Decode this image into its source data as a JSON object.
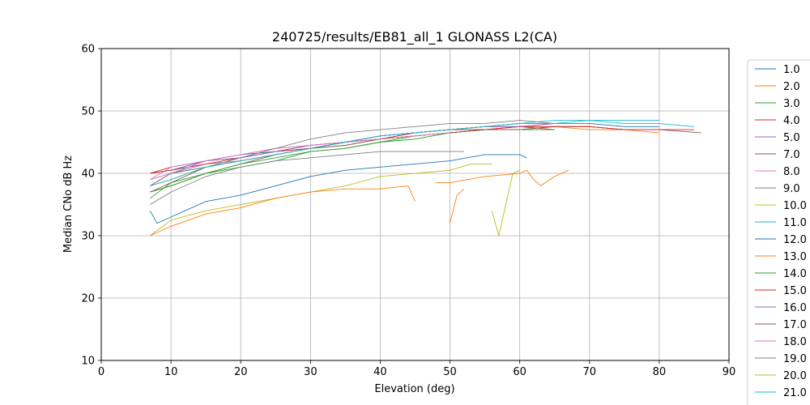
{
  "chart_data": {
    "type": "line",
    "title": "240725/results/EB81_all_1 GLONASS L2(CA)",
    "xlabel": "Elevation (deg)",
    "ylabel": "Median CNo dB Hz",
    "xlim": [
      0,
      90
    ],
    "ylim": [
      10,
      60
    ],
    "xticks": [
      "0",
      "10",
      "20",
      "30",
      "40",
      "50",
      "60",
      "70",
      "80",
      "90"
    ],
    "yticks": [
      "10",
      "20",
      "30",
      "40",
      "50",
      "60"
    ],
    "grid": true,
    "legend": "right, outside plot (truncated)",
    "series": [
      {
        "name": "1.0",
        "color": "#1f77b4",
        "x": [
          7,
          10,
          15,
          20,
          25,
          30,
          35,
          40,
          45,
          50,
          55,
          60,
          65,
          70,
          75,
          80
        ],
        "y": [
          40,
          40.5,
          42,
          43,
          43.5,
          44,
          45,
          46,
          46.5,
          47,
          47.5,
          48,
          48,
          48,
          47.5,
          47.5
        ]
      },
      {
        "name": "2.0",
        "color": "#ff7f0e",
        "x": [
          7,
          10,
          15,
          20,
          25,
          30,
          35,
          40,
          45,
          50,
          55,
          60,
          65,
          70,
          75,
          80
        ],
        "y": [
          38,
          39,
          41,
          42,
          43,
          44,
          45,
          45.5,
          46,
          46.5,
          47,
          47.5,
          47.5,
          47,
          47,
          46.5
        ]
      },
      {
        "name": "3.0",
        "color": "#2ca02c",
        "x": [
          7,
          10,
          15,
          20,
          25,
          30,
          35,
          40,
          45,
          50,
          55,
          60,
          65,
          70,
          75
        ],
        "y": [
          36,
          38.5,
          40,
          41,
          42,
          43.5,
          44,
          45,
          46,
          46.5,
          47,
          47,
          47.5,
          47.5,
          47
        ]
      },
      {
        "name": "4.0",
        "color": "#d62728",
        "x": [
          7,
          10,
          15,
          20,
          25,
          30,
          35,
          40,
          45,
          50,
          55,
          60,
          65
        ],
        "y": [
          40,
          41,
          42,
          42.5,
          43.5,
          44.5,
          45,
          46,
          46.5,
          47,
          47.5,
          47.5,
          47
        ]
      },
      {
        "name": "5.0",
        "color": "#9467bd",
        "x": [
          7,
          10,
          15,
          20,
          25,
          30,
          35,
          40,
          45,
          50,
          55,
          60,
          65,
          70
        ],
        "y": [
          38,
          40,
          41.5,
          42,
          43,
          44,
          45,
          45.5,
          46.5,
          47,
          47,
          47.5,
          48,
          48
        ]
      },
      {
        "name": "7.0",
        "color": "#8c564b",
        "x": [
          7,
          10,
          15,
          20,
          25,
          30,
          35,
          40,
          45,
          50,
          55,
          60,
          65,
          70,
          75,
          80,
          86
        ],
        "y": [
          37,
          38,
          40,
          41.5,
          43,
          44,
          44.5,
          45.5,
          46,
          46.5,
          47,
          47,
          47.5,
          47.5,
          47,
          47,
          46.5
        ]
      },
      {
        "name": "8.0",
        "color": "#e377c2",
        "x": [
          7,
          10,
          15,
          20,
          25,
          30,
          35,
          40,
          45,
          50,
          55,
          60
        ],
        "y": [
          39,
          41,
          42,
          43,
          44,
          44.5,
          45,
          46,
          46.5,
          47,
          47,
          47.5
        ]
      },
      {
        "name": "9.0",
        "color": "#7f7f7f",
        "x": [
          7,
          10,
          15,
          20,
          25,
          30,
          35,
          40,
          45,
          50,
          52
        ],
        "y": [
          35,
          37,
          39.5,
          41,
          42,
          42.5,
          43,
          43.5,
          43.5,
          43.5,
          43.5
        ]
      },
      {
        "name": "10.0",
        "color": "#bcbd22",
        "x": [
          7,
          10,
          15,
          20,
          25,
          30,
          35,
          40,
          45,
          50,
          53,
          56
        ],
        "y": [
          30,
          32.5,
          34,
          35,
          36,
          37,
          38,
          39.5,
          40,
          40.5,
          41.5,
          41.5
        ]
      },
      {
        "name": "11.0",
        "color": "#17becf",
        "x": [
          7,
          10,
          15,
          20,
          25,
          30,
          35,
          40,
          45,
          50,
          55,
          60,
          65,
          70,
          75,
          80
        ],
        "y": [
          39,
          40,
          41,
          42,
          43,
          44,
          45,
          46,
          46.5,
          47,
          47.5,
          48,
          48.5,
          48.5,
          48.5,
          48.5
        ]
      },
      {
        "name": "12.0",
        "color": "#1f77b4",
        "x": [
          7,
          8,
          10,
          12,
          15,
          20,
          25,
          30,
          35,
          40,
          45,
          50,
          55,
          60,
          61
        ],
        "y": [
          34,
          32,
          33,
          34,
          35.5,
          36.5,
          38,
          39.5,
          40.5,
          41,
          41.5,
          42,
          43,
          43,
          42.5
        ]
      },
      {
        "name": "13.0",
        "color": "#ff7f0e",
        "x": [
          7,
          10,
          15,
          20,
          25,
          30,
          35,
          40,
          44,
          45
        ],
        "y": [
          30,
          31.5,
          33.5,
          34.5,
          36,
          37,
          37.5,
          37.5,
          38,
          35.5
        ]
      },
      {
        "name": "14.0",
        "color": "#2ca02c",
        "x": [
          7,
          10,
          15,
          20,
          25,
          30,
          35,
          40,
          45,
          50,
          55,
          60,
          65
        ],
        "y": [
          37,
          38,
          40,
          41.5,
          42.5,
          43.5,
          44,
          45,
          45.5,
          46.5,
          47,
          47,
          47
        ]
      },
      {
        "name": "15.0",
        "color": "#d62728",
        "x": [
          7,
          10,
          15,
          20,
          25,
          30,
          35,
          40,
          45,
          50,
          55,
          60,
          65,
          70,
          75,
          80,
          85
        ],
        "y": [
          40,
          40.5,
          41.5,
          42.5,
          43.5,
          44,
          45,
          45.5,
          46.5,
          47,
          47,
          47.5,
          47.5,
          47.5,
          47,
          47,
          47
        ]
      },
      {
        "name": "16.0",
        "color": "#9467bd",
        "x": [
          7,
          10,
          15,
          20,
          25,
          30,
          35,
          40,
          45,
          50,
          55,
          60,
          65
        ],
        "y": [
          38,
          40,
          42,
          42.5,
          43.5,
          44.5,
          45,
          46,
          46.5,
          47,
          47.5,
          47.5,
          48
        ]
      },
      {
        "name": "17.0",
        "color": "#8c564b",
        "x": [
          7,
          10,
          15,
          20,
          25,
          30,
          35,
          40,
          45,
          50,
          55,
          60
        ],
        "y": [
          37,
          38.5,
          41,
          42,
          43,
          44,
          44.5,
          45.5,
          46,
          46.5,
          47,
          47
        ]
      },
      {
        "name": "18.0",
        "color": "#e377c2",
        "x": [
          7,
          10,
          15,
          20,
          25,
          30,
          35,
          40,
          45,
          50
        ],
        "y": [
          39,
          40,
          42,
          43,
          44,
          44.5,
          45,
          45.5,
          46,
          46.5
        ]
      },
      {
        "name": "19.0",
        "color": "#7f7f7f",
        "x": [
          7,
          10,
          15,
          20,
          25,
          30,
          35,
          40,
          45,
          50,
          55,
          60,
          65,
          70
        ],
        "y": [
          38,
          40,
          41,
          42.5,
          44,
          45.5,
          46.5,
          47,
          47.5,
          48,
          48,
          48.5,
          48,
          48
        ]
      },
      {
        "name": "20.0",
        "color": "#bcbd22",
        "x": [
          56,
          57,
          58,
          59,
          60
        ],
        "y": [
          34,
          30,
          35,
          40,
          40.5
        ]
      },
      {
        "name": "21.0",
        "color": "#17becf",
        "x": [
          7,
          10,
          15,
          20,
          25,
          30,
          35,
          40,
          45,
          50,
          55,
          60,
          65,
          70,
          75,
          80,
          85
        ],
        "y": [
          38,
          39,
          41,
          42,
          43,
          44,
          45,
          46,
          46.5,
          47,
          47.5,
          48,
          48,
          48.5,
          48,
          48,
          47.5
        ]
      },
      {
        "name": "",
        "color": "#ff7f0e",
        "x": [
          50,
          51,
          52
        ],
        "y": [
          32,
          36.5,
          37.5
        ]
      },
      {
        "name": "",
        "color": "#ff7f0e",
        "x": [
          48,
          50,
          55,
          60,
          61,
          62,
          63,
          65,
          67
        ],
        "y": [
          38.5,
          38.5,
          39.5,
          40,
          40.5,
          39,
          38,
          39.5,
          40.5
        ]
      }
    ]
  }
}
